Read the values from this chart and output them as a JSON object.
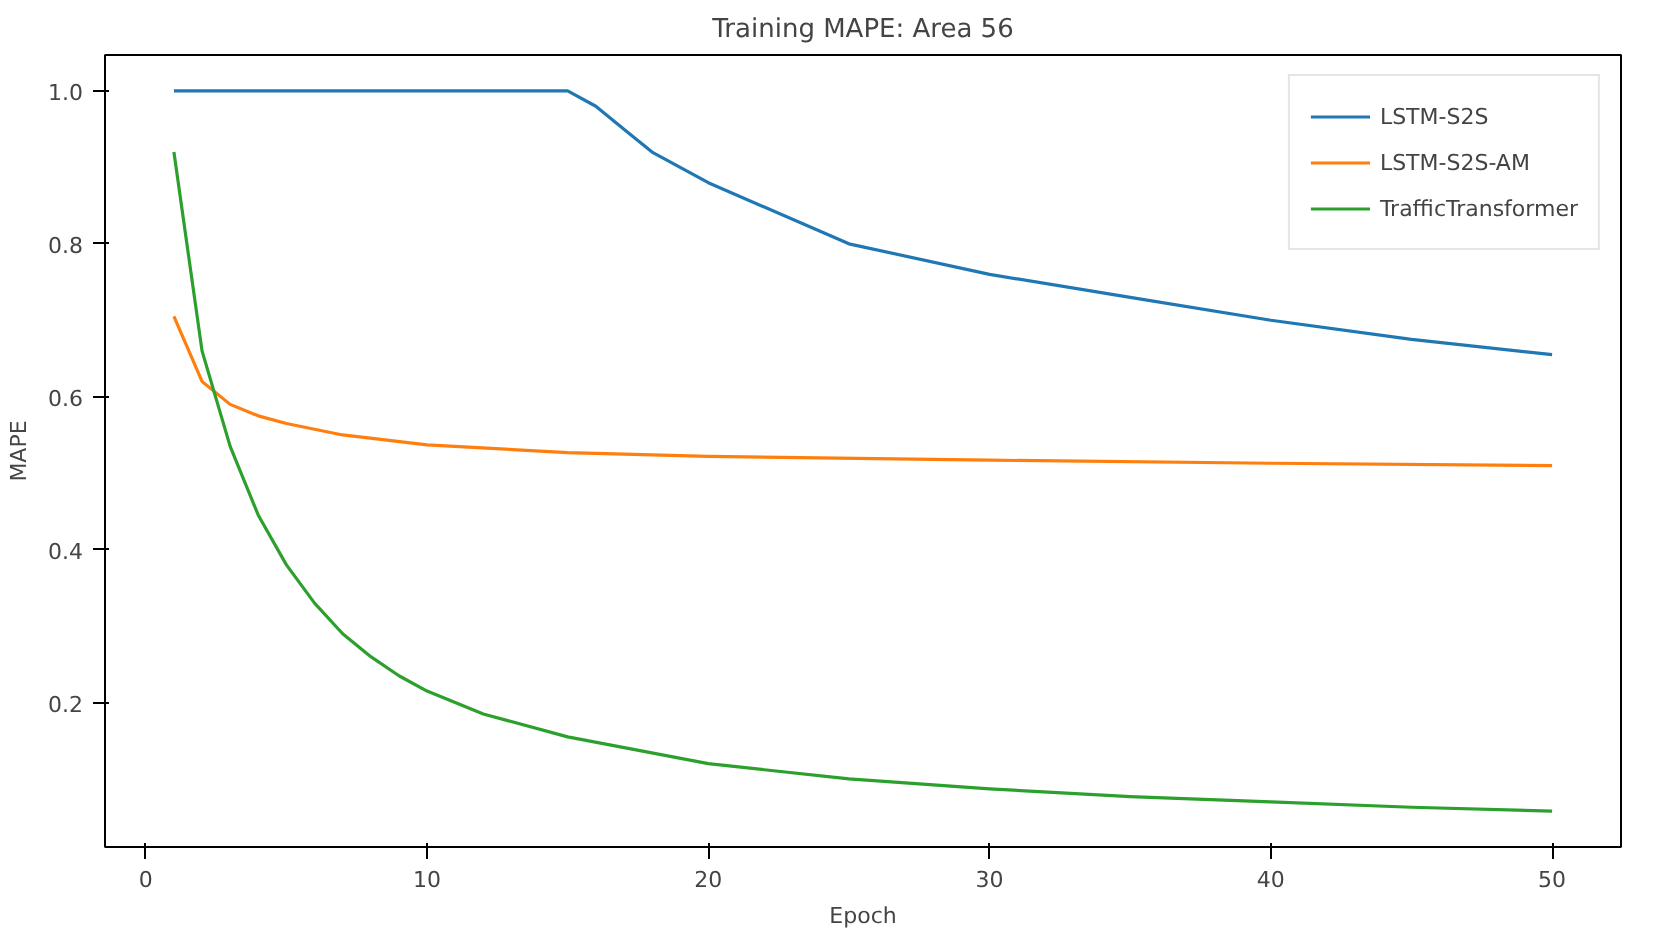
{
  "chart_data": {
    "type": "line",
    "title": "Training MAPE: Area 56",
    "xlabel": "Epoch",
    "ylabel": "MAPE",
    "xlim": [
      -1.45,
      52.45
    ],
    "ylim": [
      0.011,
      1.047
    ],
    "xticks": [
      0,
      10,
      20,
      30,
      40,
      50
    ],
    "yticks": [
      0.2,
      0.4,
      0.6,
      0.8,
      {
        "value": 1,
        "label": "1.0"
      }
    ],
    "grid": false,
    "legend": "top right",
    "marker": "none",
    "line_style": "solid",
    "series": [
      {
        "name": "LSTM-S2S",
        "color": "#1f77b4",
        "x": [
          1,
          5,
          10,
          15,
          16,
          17,
          18,
          20,
          25,
          30,
          35,
          40,
          45,
          50
        ],
        "values": [
          1.0,
          1.0,
          1.0,
          1.0,
          0.98,
          0.95,
          0.92,
          0.88,
          0.8,
          0.76,
          0.73,
          0.7,
          0.675,
          0.655
        ]
      },
      {
        "name": "LSTM-S2S-AM",
        "color": "#ff7f0e",
        "x": [
          1,
          2,
          3,
          4,
          5,
          7,
          10,
          15,
          20,
          30,
          40,
          50
        ],
        "values": [
          0.705,
          0.62,
          0.59,
          0.575,
          0.565,
          0.55,
          0.537,
          0.527,
          0.522,
          0.517,
          0.513,
          0.51
        ]
      },
      {
        "name": "TrafficTransformer",
        "color": "#2ca02c",
        "x": [
          1,
          2,
          3,
          4,
          5,
          6,
          7,
          8,
          9,
          10,
          12,
          15,
          20,
          25,
          30,
          35,
          40,
          45,
          50
        ],
        "values": [
          0.92,
          0.66,
          0.535,
          0.445,
          0.38,
          0.33,
          0.29,
          0.26,
          0.235,
          0.215,
          0.185,
          0.155,
          0.12,
          0.1,
          0.087,
          0.077,
          0.07,
          0.063,
          0.058
        ]
      }
    ]
  }
}
